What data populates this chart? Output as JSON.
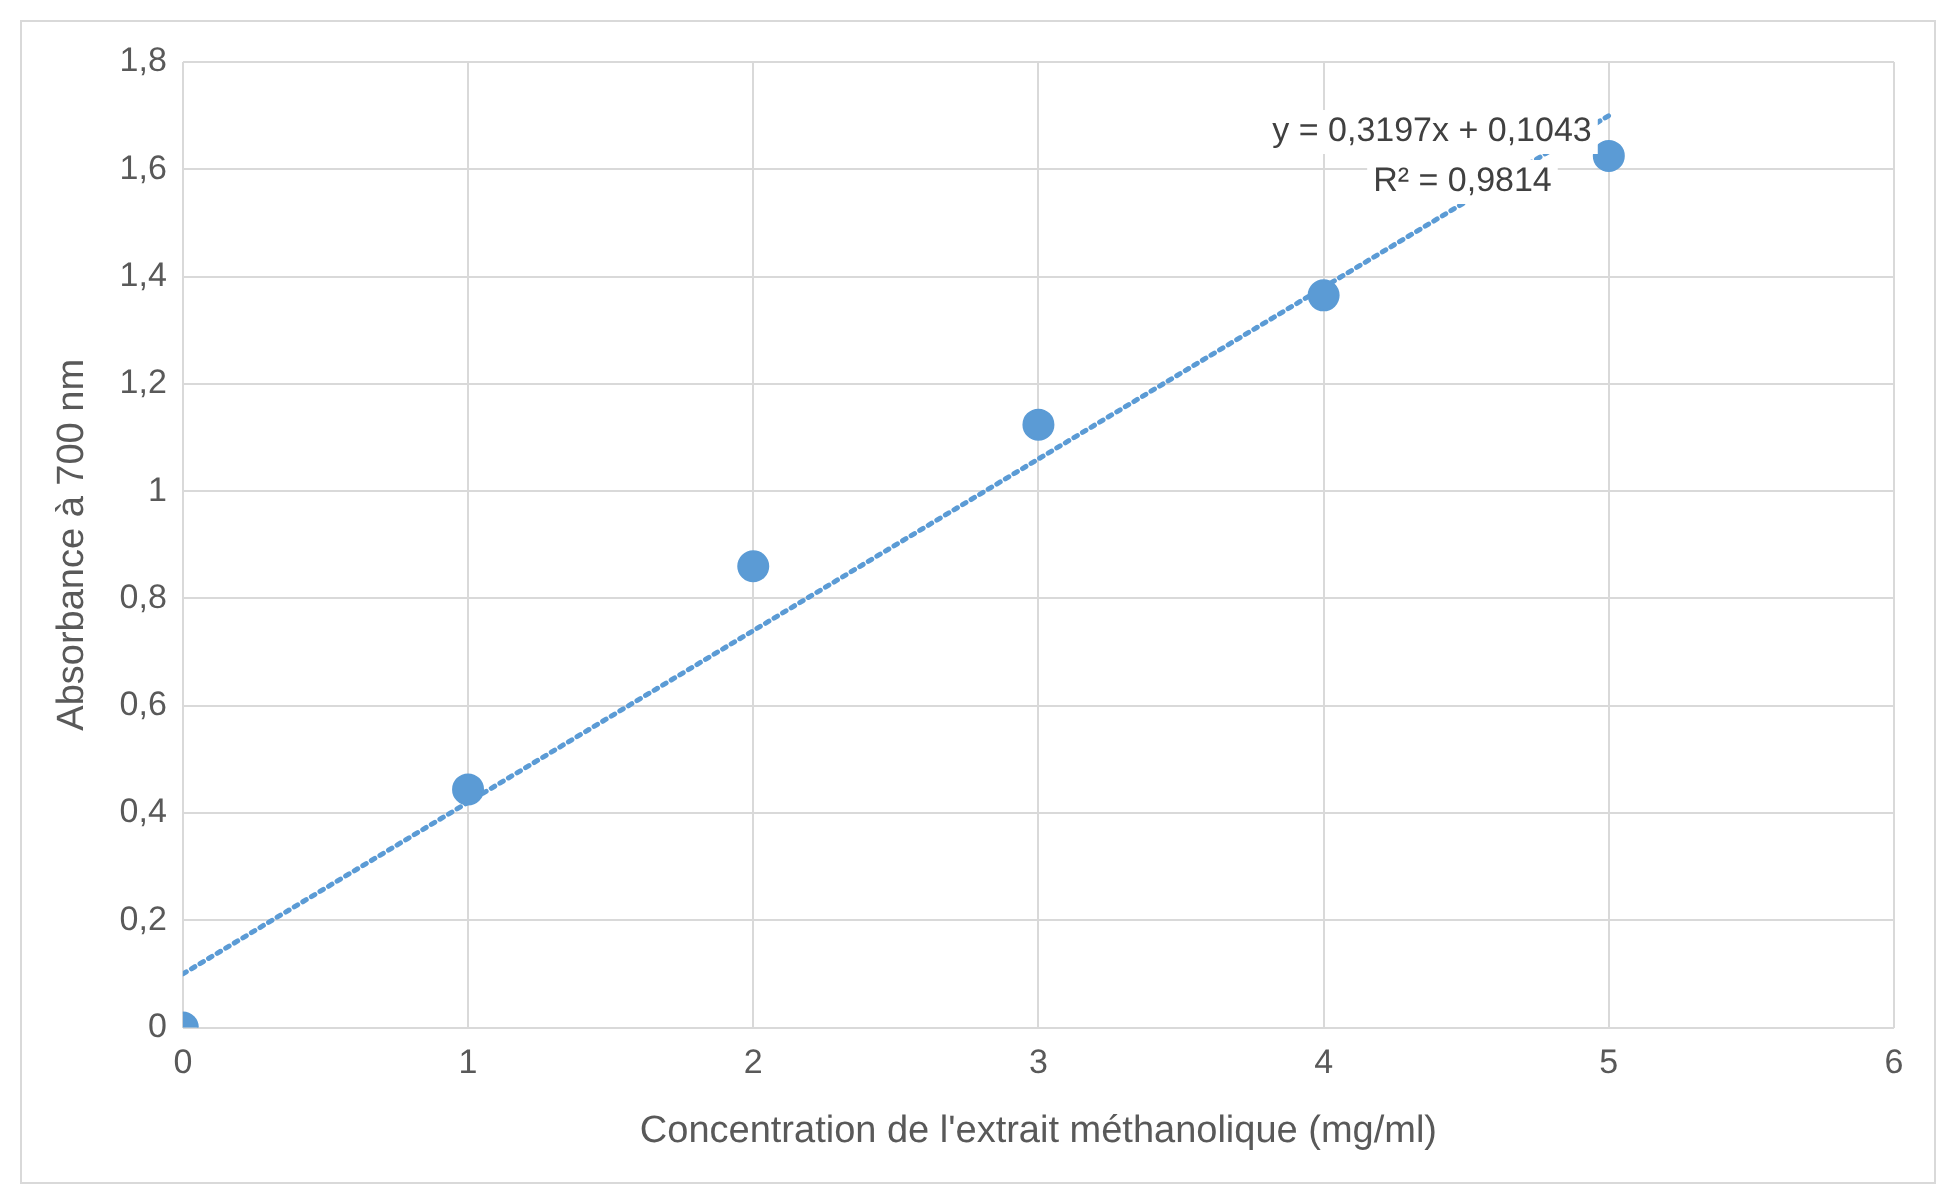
{
  "chart_data": {
    "type": "scatter",
    "xlabel": "Concentration de l'extrait méthanolique (mg/ml)",
    "ylabel": "Absorbance à 700 nm",
    "x": [
      0,
      1,
      2,
      3,
      4,
      5
    ],
    "series": [
      {
        "color": "#5b9bd5",
        "values": [
          0,
          0.444,
          0.86,
          1.124,
          1.365,
          1.625
        ],
        "marker": "circle"
      },
      {
        "type": "line",
        "color": "#5b9bd5",
        "x": [
          0,
          5
        ],
        "values": [
          0.1,
          1.7
        ],
        "marker": "none",
        "line_style": "dotted"
      }
    ],
    "xlim": [
      0,
      6
    ],
    "xticks": [
      0,
      1,
      2,
      3,
      4,
      5,
      6
    ],
    "ylim": [
      0,
      1.8
    ],
    "yticks": [
      0,
      {
        "value": 0.2,
        "label": "0,2"
      },
      {
        "value": 0.4,
        "label": "0,4"
      },
      {
        "value": 0.6,
        "label": "0,6"
      },
      {
        "value": 0.8,
        "label": "0,8"
      },
      1,
      {
        "value": 1.2,
        "label": "1,2"
      },
      {
        "value": 1.4,
        "label": "1,4"
      },
      {
        "value": 1.6,
        "label": "1,6"
      },
      {
        "value": 1.8,
        "label": "1,8"
      }
    ],
    "annotations": [
      "y = 0,3197x + 0,1043",
      "R² = 0,9814"
    ],
    "grid": true,
    "legend": false
  }
}
